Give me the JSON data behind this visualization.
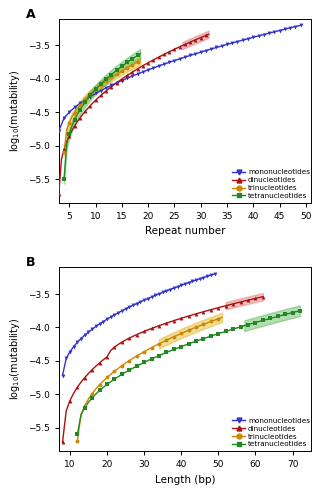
{
  "panel_A": {
    "title": "A",
    "xlabel": "Repeat number",
    "ylabel": "log$_{10}$(mutability)",
    "xlim": [
      3,
      51
    ],
    "ylim": [
      -5.85,
      -3.1
    ],
    "xticks": [
      5,
      10,
      15,
      20,
      25,
      30,
      35,
      40,
      45,
      50
    ],
    "yticks": [
      -5.5,
      -5.0,
      -4.5,
      -4.0,
      -3.5
    ]
  },
  "panel_B": {
    "title": "B",
    "xlabel": "Length (bp)",
    "ylabel": "log$_{10}$(mutability)",
    "xlim": [
      7,
      75
    ],
    "ylim": [
      -5.85,
      -3.1
    ],
    "xticks": [
      10,
      20,
      30,
      40,
      50,
      60,
      70
    ],
    "yticks": [
      -5.5,
      -5.0,
      -4.5,
      -4.0,
      -3.5
    ]
  },
  "legend_labels": [
    "mononucleotides",
    "dinucleotides",
    "trinucleotides",
    "tetranucleotides"
  ],
  "legend_colors": [
    "#3333cc",
    "#aa1111",
    "#cc8800",
    "#228822"
  ],
  "legend_markers": [
    "v",
    "^",
    "o",
    "s"
  ]
}
